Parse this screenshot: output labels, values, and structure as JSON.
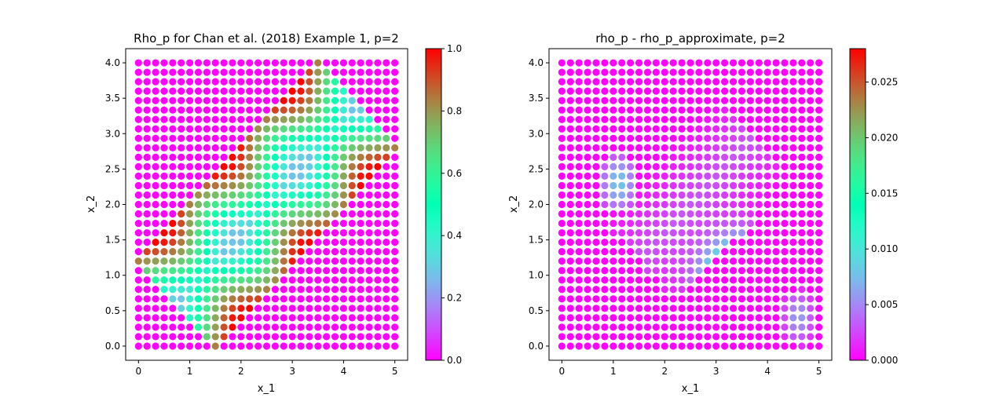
{
  "chart_data": [
    {
      "type": "scatter",
      "title": "Rho_p for Chan et al. (2018) Example 1, p=2",
      "xlabel": "x_1",
      "ylabel": "x_2",
      "xlim": [
        -0.25,
        5.25
      ],
      "ylim": [
        -0.2,
        4.2
      ],
      "xticks": [
        "0",
        "1",
        "2",
        "3",
        "4",
        "5"
      ],
      "yticks": [
        "0.0",
        "0.5",
        "1.0",
        "1.5",
        "2.0",
        "2.5",
        "3.0",
        "3.5",
        "4.0"
      ],
      "grid_x": {
        "start": 0,
        "stop": 5,
        "count": 31
      },
      "grid_y": {
        "start": 0,
        "stop": 4,
        "count": 31
      },
      "colormap": "rainbow",
      "colorbar": {
        "min": 0,
        "max": 1,
        "ticks": [
          "0.0",
          "0.2",
          "0.4",
          "0.6",
          "0.8",
          "1.0"
        ]
      },
      "field": "rho_p",
      "grid": false,
      "legend": "none"
    },
    {
      "type": "scatter",
      "title": "rho_p - rho_p_approximate, p=2",
      "xlabel": "x_1",
      "ylabel": "x_2",
      "xlim": [
        -0.25,
        5.25
      ],
      "ylim": [
        -0.2,
        4.2
      ],
      "xticks": [
        "0",
        "1",
        "2",
        "3",
        "4",
        "5"
      ],
      "yticks": [
        "0.0",
        "0.5",
        "1.0",
        "1.5",
        "2.0",
        "2.5",
        "3.0",
        "3.5",
        "4.0"
      ],
      "grid_x": {
        "start": 0,
        "stop": 5,
        "count": 31
      },
      "grid_y": {
        "start": 0,
        "stop": 4,
        "count": 31
      },
      "colormap": "rainbow",
      "colorbar": {
        "min": 0,
        "max": 0.028,
        "ticks": [
          "0.000",
          "0.005",
          "0.010",
          "0.015",
          "0.020",
          "0.025"
        ]
      },
      "field": "rho_p_minus_approx",
      "grid": false,
      "legend": "none"
    }
  ]
}
